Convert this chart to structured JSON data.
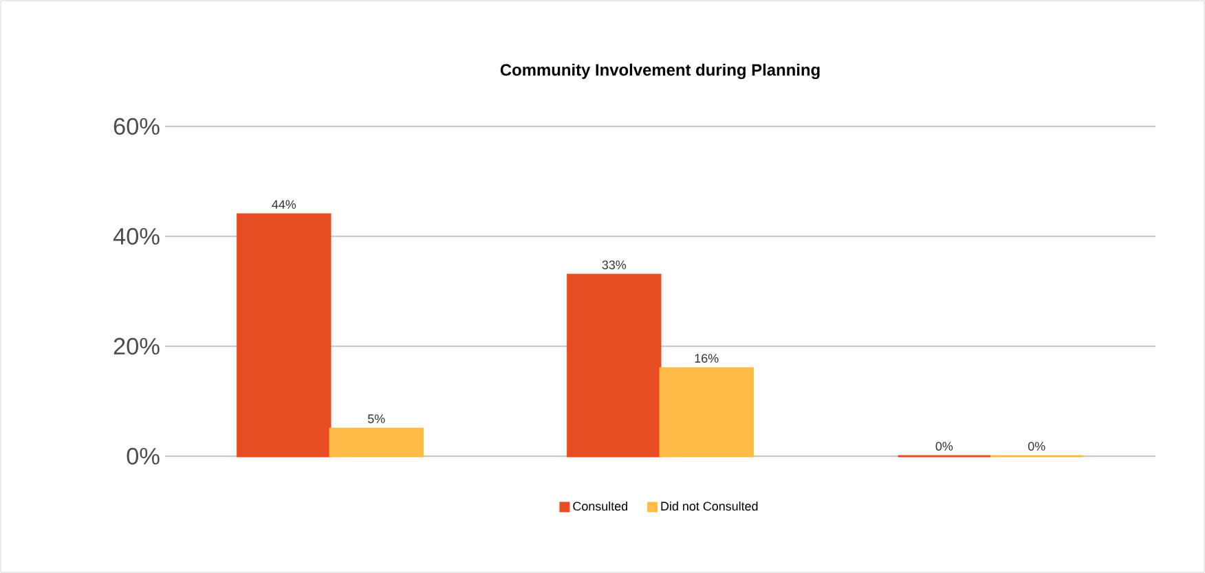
{
  "chart_data": {
    "type": "bar",
    "title": "Community Involvement during Planning",
    "categories": [
      null,
      null,
      null
    ],
    "series": [
      {
        "name": "Consulted",
        "color": "#e84c22",
        "values": [
          44,
          33,
          0
        ],
        "value_labels": [
          "44%",
          "33%",
          "0%"
        ]
      },
      {
        "name": "Did not Consulted",
        "color": "#ffbb44",
        "values": [
          5,
          16,
          0
        ],
        "value_labels": [
          "5%",
          "16%",
          "0%"
        ]
      }
    ],
    "ylim": [
      0,
      60
    ],
    "yticks": [
      {
        "value": 0,
        "label": "0%"
      },
      {
        "value": 20,
        "label": "20%"
      },
      {
        "value": 40,
        "label": "40%"
      },
      {
        "value": 60,
        "label": "60%"
      }
    ],
    "grid": "y",
    "legend": "bottom"
  }
}
